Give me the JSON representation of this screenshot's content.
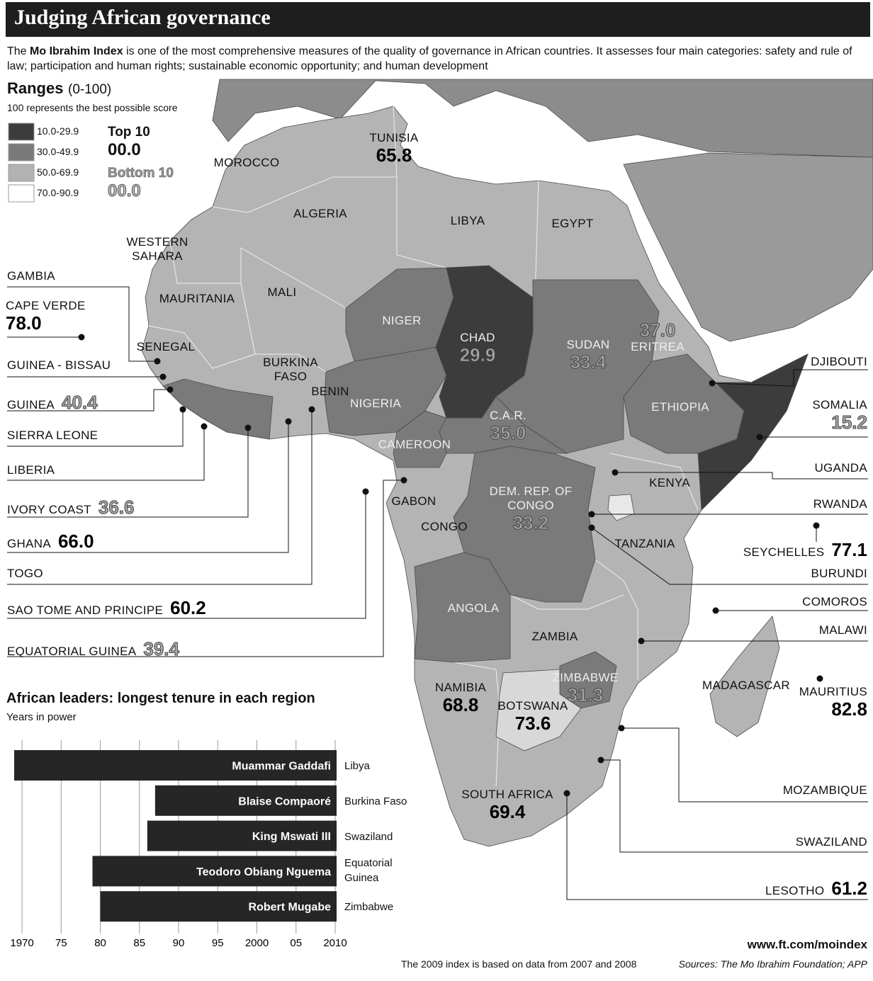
{
  "header": {
    "title": "Judging African governance",
    "intro_prefix": "The",
    "intro_bold": "Mo Ibrahim Index",
    "intro_rest": "is one of the most comprehensive measures of the quality of governance in African countries. It assesses four main categories: safety and rule of law; participation and human rights; sustainable economic opportunity; and human development"
  },
  "legend": {
    "title": "Ranges",
    "range_note": "(0-100)",
    "subtitle": "100 represents the best possible score",
    "ranges": [
      {
        "label": "10.0-29.9",
        "color": "#3c3c3c"
      },
      {
        "label": "30.0-49.9",
        "color": "#7a7a7a"
      },
      {
        "label": "50.0-69.9",
        "color": "#b2b2b2"
      },
      {
        "label": "70.0-90.9",
        "color": "#ffffff"
      }
    ],
    "top_label": "Top 10",
    "top_sample": "00.0",
    "bottom_label": "Bottom 10",
    "bottom_sample": "00.0"
  },
  "map": {
    "countries": [
      {
        "name": "MOROCCO"
      },
      {
        "name": "ALGERIA"
      },
      {
        "name": "TUNISIA",
        "score": "65.8"
      },
      {
        "name": "LIBYA"
      },
      {
        "name": "EGYPT"
      },
      {
        "name": "WESTERN SAHARA"
      },
      {
        "name": "MAURITANIA"
      },
      {
        "name": "MALI"
      },
      {
        "name": "NIGER"
      },
      {
        "name": "CHAD",
        "score": "29.9"
      },
      {
        "name": "SUDAN",
        "score": "33.4"
      },
      {
        "name": "ERITREA",
        "score": "37.0"
      },
      {
        "name": "SENEGAL"
      },
      {
        "name": "BURKINA FASO"
      },
      {
        "name": "BENIN"
      },
      {
        "name": "NIGERIA"
      },
      {
        "name": "C.A.R.",
        "score": "35.0"
      },
      {
        "name": "ETHIOPIA"
      },
      {
        "name": "CAMEROON"
      },
      {
        "name": "GABON"
      },
      {
        "name": "CONGO"
      },
      {
        "name": "DEM. REP. OF CONGO",
        "score": "33.2"
      },
      {
        "name": "KENYA"
      },
      {
        "name": "TANZANIA"
      },
      {
        "name": "ANGOLA"
      },
      {
        "name": "ZAMBIA"
      },
      {
        "name": "ZIMBABWE",
        "score": "31.3"
      },
      {
        "name": "NAMIBIA",
        "score": "68.8"
      },
      {
        "name": "BOTSWANA",
        "score": "73.6"
      },
      {
        "name": "SOUTH AFRICA",
        "score": "69.4"
      },
      {
        "name": "MADAGASCAR"
      },
      {
        "name": "GAMBIA"
      },
      {
        "name": "CAPE VERDE",
        "score": "78.0"
      },
      {
        "name": "GUINEA - BISSAU"
      },
      {
        "name": "GUINEA",
        "score": "40.4"
      },
      {
        "name": "SIERRA LEONE"
      },
      {
        "name": "LIBERIA"
      },
      {
        "name": "IVORY COAST",
        "score": "36.6"
      },
      {
        "name": "GHANA",
        "score": "66.0"
      },
      {
        "name": "TOGO"
      },
      {
        "name": "SAO TOME AND PRINCIPE",
        "score": "60.2"
      },
      {
        "name": "EQUATORIAL GUINEA",
        "score": "39.4"
      },
      {
        "name": "DJIBOUTI"
      },
      {
        "name": "SOMALIA",
        "score": "15.2"
      },
      {
        "name": "UGANDA"
      },
      {
        "name": "RWANDA"
      },
      {
        "name": "SEYCHELLES",
        "score": "77.1"
      },
      {
        "name": "BURUNDI"
      },
      {
        "name": "COMOROS"
      },
      {
        "name": "MALAWI"
      },
      {
        "name": "MAURITIUS",
        "score": "82.8"
      },
      {
        "name": "MOZAMBIQUE"
      },
      {
        "name": "SWAZILAND"
      },
      {
        "name": "LESOTHO",
        "score": "61.2"
      }
    ]
  },
  "chart_data": {
    "type": "bar",
    "orientation": "horizontal",
    "title": "African leaders: longest tenure in each region",
    "subtitle": "Years in power",
    "categories": [
      "Muammar Gaddafi",
      "Blaise Compaoré",
      "King Mswati III",
      "Teodoro Obiang Nguema",
      "Robert Mugabe"
    ],
    "regions": [
      "Libya",
      "Burkina Faso",
      "Swaziland",
      "Equatorial Guinea",
      "Zimbabwe"
    ],
    "starts": [
      1969,
      1987,
      1986,
      1979,
      1980
    ],
    "end": 2010,
    "color": "#262626",
    "xlim": [
      1969,
      2010
    ],
    "xticks": [
      1970,
      {
        "value": 1975,
        "label": "75"
      },
      {
        "value": 1980,
        "label": "80"
      },
      {
        "value": 1985,
        "label": "85"
      },
      {
        "value": 1990,
        "label": "90"
      },
      {
        "value": 1995,
        "label": "95"
      },
      2000,
      {
        "value": 2005,
        "label": "05"
      },
      2010
    ],
    "grid": true
  },
  "footer": {
    "url": "www.ft.com/moindex",
    "note": "The 2009 index is based on data from 2007 and 2008",
    "sources": "Sources: The Mo Ibrahim Foundation; APP"
  }
}
